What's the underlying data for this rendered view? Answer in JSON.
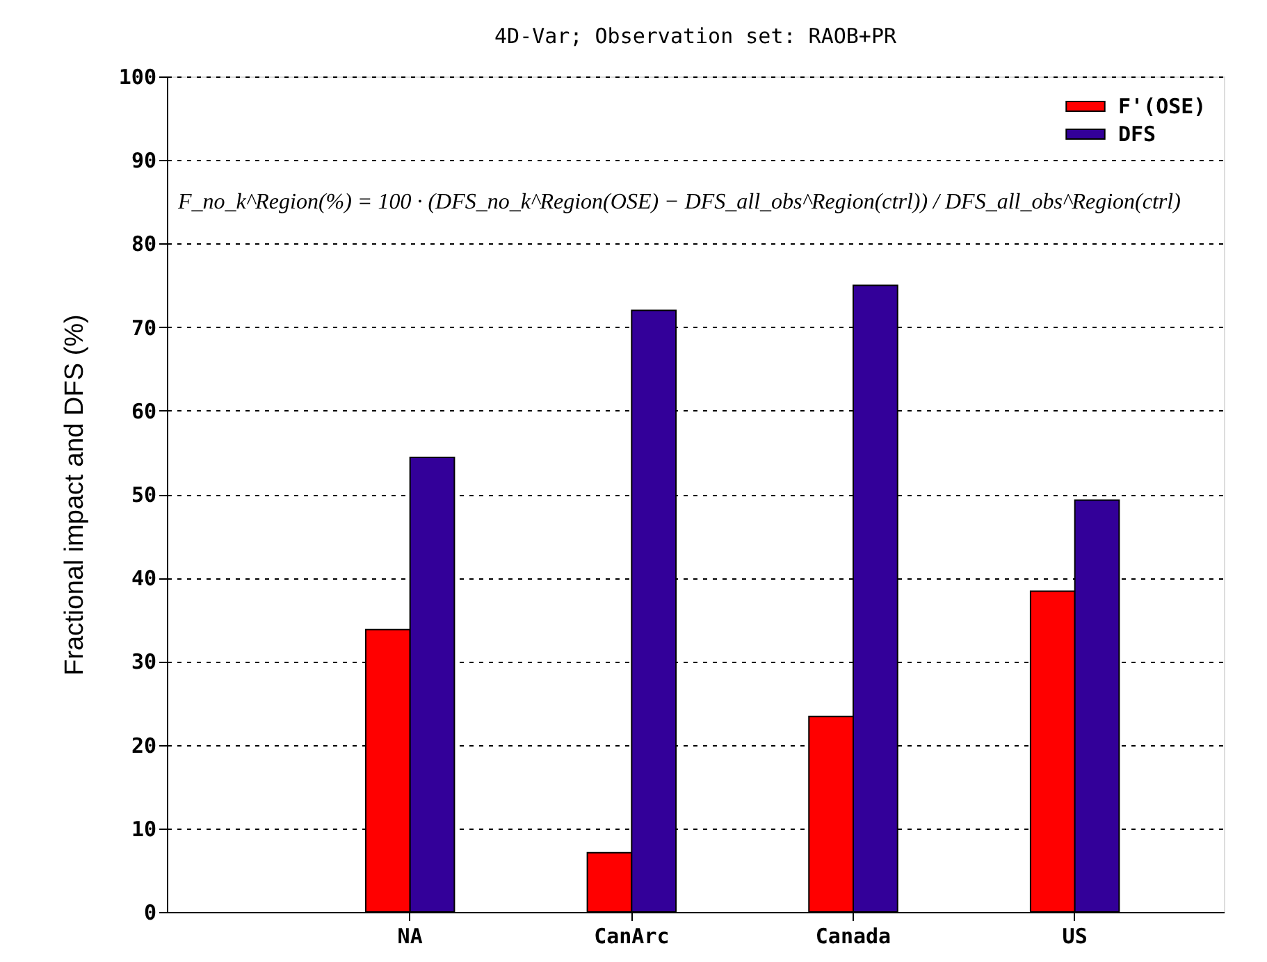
{
  "chart_data": {
    "type": "bar",
    "title": "4D-Var; Observation set: RAOB+PR",
    "ylabel": "Fractional impact and DFS (%)",
    "categories": [
      "NA",
      "CanArc",
      "Canada",
      "US"
    ],
    "series": [
      {
        "name": "F'(OSE)",
        "color": "#ff0000",
        "values": [
          33.8,
          7.1,
          23.4,
          38.4
        ]
      },
      {
        "name": "DFS",
        "color": "#330099",
        "values": [
          54.4,
          72.0,
          75.0,
          49.3
        ]
      }
    ],
    "ylim": [
      0,
      100
    ],
    "yticks": [
      0,
      10,
      20,
      30,
      40,
      50,
      60,
      70,
      80,
      90,
      100
    ],
    "grid": "y",
    "legend": "top right",
    "annotations": [
      "F_no_k^Region(%) = 100 · (DFS_no_k^Region(OSE) − DFS_all_obs^Region(ctrl)) / DFS_all_obs^Region(ctrl)"
    ]
  }
}
